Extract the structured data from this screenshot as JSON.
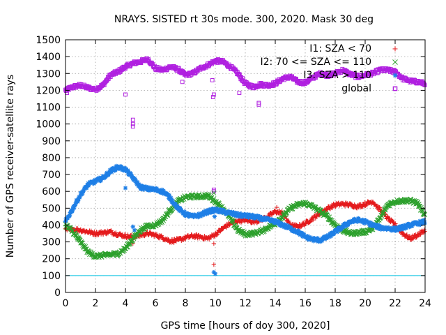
{
  "chart_data": {
    "type": "scatter",
    "title": "NRAYS. SISTED rt 30s mode. 300, 2020. Mask 30 deg",
    "xlabel": "GPS time [hours of doy 300, 2020]",
    "ylabel": "Number of GPS receiver-satellite rays",
    "xlim": [
      0,
      24
    ],
    "ylim": [
      0,
      1500
    ],
    "xticks": [
      "0",
      "2",
      "4",
      "6",
      "8",
      "10",
      "12",
      "14",
      "16",
      "18",
      "20",
      "22",
      "24"
    ],
    "yticks": [
      "0",
      "100",
      "200",
      "300",
      "400",
      "500",
      "600",
      "700",
      "800",
      "900",
      "1000",
      "1100",
      "1200",
      "1300",
      "1400",
      "1500"
    ],
    "grid": true,
    "legend_position": "top-right",
    "reference_line": {
      "y": 100,
      "color": "#00c0e0"
    },
    "series": [
      {
        "name": "I1: SZA < 70",
        "marker": "+",
        "color": "#e41a1c",
        "x": [
          0,
          0.5,
          1,
          1.5,
          2,
          2.5,
          3,
          3.5,
          4,
          4.5,
          5,
          5.5,
          6,
          6.5,
          7,
          7.5,
          8,
          8.5,
          9,
          9.5,
          10,
          10.5,
          11,
          11.5,
          12,
          12.5,
          13,
          13.5,
          14,
          14.5,
          15,
          15.5,
          16,
          16.5,
          17,
          17.5,
          18,
          18.5,
          19,
          19.5,
          20,
          20.5,
          21,
          21.5,
          22,
          22.5,
          23,
          23.5,
          24
        ],
        "values": [
          370,
          375,
          370,
          360,
          350,
          355,
          360,
          345,
          335,
          330,
          340,
          350,
          340,
          325,
          305,
          310,
          325,
          335,
          330,
          320,
          345,
          380,
          410,
          425,
          430,
          420,
          430,
          450,
          480,
          470,
          400,
          390,
          410,
          440,
          470,
          500,
          520,
          525,
          520,
          510,
          525,
          540,
          490,
          440,
          400,
          350,
          320,
          340,
          370
        ],
        "outliers": [
          [
            4.5,
            290
          ],
          [
            9.9,
            290
          ],
          [
            9.9,
            165
          ],
          [
            14.1,
            505
          ]
        ]
      },
      {
        "name": "I2: 70 <= SZA <= 110",
        "marker": "x",
        "color": "#2ca02c",
        "x": [
          0,
          0.5,
          1,
          1.5,
          2,
          2.5,
          3,
          3.5,
          4,
          4.5,
          5,
          5.5,
          6,
          6.5,
          7,
          7.5,
          8,
          8.5,
          9,
          9.5,
          10,
          10.5,
          11,
          11.5,
          12,
          12.5,
          13,
          13.5,
          14,
          14.5,
          15,
          15.5,
          16,
          16.5,
          17,
          17.5,
          18,
          18.5,
          19,
          19.5,
          20,
          20.5,
          21,
          21.5,
          22,
          22.5,
          23,
          23.5,
          24
        ],
        "values": [
          400,
          360,
          300,
          240,
          215,
          220,
          225,
          230,
          260,
          320,
          370,
          395,
          400,
          430,
          490,
          540,
          565,
          570,
          570,
          575,
          540,
          500,
          440,
          370,
          345,
          350,
          360,
          385,
          410,
          450,
          500,
          520,
          530,
          510,
          480,
          450,
          400,
          370,
          350,
          355,
          360,
          380,
          440,
          520,
          540,
          545,
          545,
          530,
          450
        ],
        "outliers": [
          [
            9.9,
            590
          ]
        ]
      },
      {
        "name": "I3: SZA > 110",
        "marker": "*",
        "color": "#1e7fe6",
        "x": [
          0,
          0.5,
          1,
          1.5,
          2,
          2.5,
          3,
          3.5,
          4,
          4.5,
          5,
          5.5,
          6,
          6.5,
          7,
          7.5,
          8,
          8.5,
          9,
          9.5,
          10,
          10.5,
          11,
          11.5,
          12,
          12.5,
          13,
          13.5,
          14,
          14.5,
          15,
          15.5,
          16,
          16.5,
          17,
          17.5,
          18,
          18.5,
          19,
          19.5,
          20,
          20.5,
          21,
          21.5,
          22,
          22.5,
          23,
          23.5,
          24
        ],
        "values": [
          420,
          500,
          580,
          640,
          660,
          680,
          720,
          745,
          730,
          680,
          625,
          615,
          610,
          600,
          560,
          500,
          465,
          450,
          460,
          480,
          490,
          480,
          470,
          460,
          455,
          450,
          440,
          430,
          420,
          400,
          380,
          360,
          330,
          315,
          310,
          330,
          360,
          390,
          420,
          430,
          420,
          400,
          385,
          380,
          375,
          385,
          400,
          410,
          420
        ],
        "outliers": [
          [
            4,
            620
          ],
          [
            4.5,
            390
          ],
          [
            4.6,
            370
          ],
          [
            9.9,
            120
          ],
          [
            10,
            110
          ],
          [
            9.95,
            450
          ]
        ]
      },
      {
        "name": "global",
        "marker": "square",
        "color": "#b020e0",
        "x": [
          0,
          0.5,
          1,
          1.5,
          2,
          2.5,
          3,
          3.5,
          4,
          4.5,
          5,
          5.5,
          6,
          6.5,
          7,
          7.5,
          8,
          8.5,
          9,
          9.5,
          10,
          10.5,
          11,
          11.5,
          12,
          12.5,
          13,
          13.5,
          14,
          14.5,
          15,
          15.5,
          16,
          16.5,
          17,
          17.5,
          18,
          18.5,
          19,
          19.5,
          20,
          20.5,
          21,
          21.5,
          22,
          22.5,
          23,
          23.5,
          24
        ],
        "values": [
          1200,
          1220,
          1230,
          1215,
          1205,
          1230,
          1290,
          1310,
          1340,
          1360,
          1370,
          1385,
          1330,
          1320,
          1340,
          1325,
          1290,
          1300,
          1330,
          1350,
          1375,
          1370,
          1340,
          1300,
          1240,
          1220,
          1235,
          1230,
          1240,
          1270,
          1280,
          1250,
          1245,
          1275,
          1300,
          1290,
          1300,
          1320,
          1295,
          1280,
          1290,
          1300,
          1320,
          1320,
          1310,
          1270,
          1255,
          1250,
          1240
        ],
        "outliers": [
          [
            0.1,
            1185
          ],
          [
            4,
            1175
          ],
          [
            4.5,
            1025
          ],
          [
            4.5,
            1000
          ],
          [
            4.5,
            985
          ],
          [
            7.8,
            1250
          ],
          [
            9.8,
            1260
          ],
          [
            9.85,
            1160
          ],
          [
            9.9,
            1175
          ],
          [
            9.9,
            610
          ],
          [
            9.9,
            600
          ],
          [
            11.6,
            1185
          ],
          [
            12.9,
            1125
          ],
          [
            12.9,
            1115
          ],
          [
            13.1,
            1230
          ],
          [
            22,
            1210
          ]
        ]
      }
    ]
  }
}
